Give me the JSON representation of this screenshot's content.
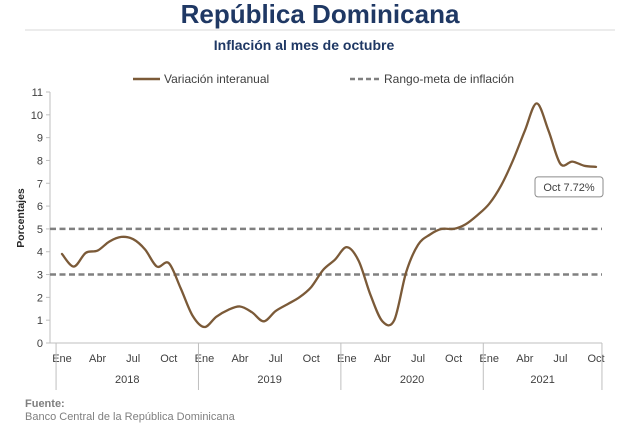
{
  "header": {
    "title": "República Dominicana"
  },
  "chart_data": {
    "type": "line",
    "title": "Inflación al mes de octubre",
    "xlabel": "",
    "ylabel": "Porcentajes",
    "ylim": [
      0,
      11
    ],
    "yticks": [
      0,
      1,
      2,
      3,
      4,
      5,
      6,
      7,
      8,
      9,
      10,
      11
    ],
    "x": [
      "2018-01",
      "2018-02",
      "2018-03",
      "2018-04",
      "2018-05",
      "2018-06",
      "2018-07",
      "2018-08",
      "2018-09",
      "2018-10",
      "2018-11",
      "2018-12",
      "2019-01",
      "2019-02",
      "2019-03",
      "2019-04",
      "2019-05",
      "2019-06",
      "2019-07",
      "2019-08",
      "2019-09",
      "2019-10",
      "2019-11",
      "2019-12",
      "2020-01",
      "2020-02",
      "2020-03",
      "2020-04",
      "2020-05",
      "2020-06",
      "2020-07",
      "2020-08",
      "2020-09",
      "2020-10",
      "2020-11",
      "2020-12",
      "2021-01",
      "2021-02",
      "2021-03",
      "2021-04",
      "2021-05",
      "2021-06",
      "2021-07",
      "2021-08",
      "2021-09",
      "2021-10"
    ],
    "xticks": [
      {
        "label": "Ene",
        "x": "2018-01"
      },
      {
        "label": "Abr",
        "x": "2018-04"
      },
      {
        "label": "Jul",
        "x": "2018-07"
      },
      {
        "label": "Oct",
        "x": "2018-10"
      },
      {
        "label": "Ene",
        "x": "2019-01"
      },
      {
        "label": "Abr",
        "x": "2019-04"
      },
      {
        "label": "Jul",
        "x": "2019-07"
      },
      {
        "label": "Oct",
        "x": "2019-10"
      },
      {
        "label": "Ene",
        "x": "2020-01"
      },
      {
        "label": "Abr",
        "x": "2020-04"
      },
      {
        "label": "Jul",
        "x": "2020-07"
      },
      {
        "label": "Oct",
        "x": "2020-10"
      },
      {
        "label": "Ene",
        "x": "2021-01"
      },
      {
        "label": "Abr",
        "x": "2021-04"
      },
      {
        "label": "Jul",
        "x": "2021-07"
      },
      {
        "label": "Oct",
        "x": "2021-10"
      }
    ],
    "year_groups": [
      {
        "label": "2018",
        "from": "2018-01",
        "to": "2018-12"
      },
      {
        "label": "2019",
        "from": "2019-01",
        "to": "2019-12"
      },
      {
        "label": "2020",
        "from": "2020-01",
        "to": "2020-12"
      },
      {
        "label": "2021",
        "from": "2021-01",
        "to": "2021-10"
      }
    ],
    "series": [
      {
        "name": "Variación interanual",
        "color": "#7b5a38",
        "values": [
          3.9,
          3.35,
          3.95,
          4.05,
          4.45,
          4.65,
          4.55,
          4.1,
          3.35,
          3.5,
          2.4,
          1.2,
          0.7,
          1.15,
          1.45,
          1.6,
          1.35,
          0.95,
          1.4,
          1.7,
          2.0,
          2.45,
          3.2,
          3.65,
          4.2,
          3.6,
          2.1,
          0.95,
          1.0,
          3.1,
          4.3,
          4.75,
          5.0,
          5.0,
          5.2,
          5.6,
          6.1,
          6.9,
          8.0,
          9.3,
          10.5,
          9.3,
          7.85,
          7.95,
          7.77,
          7.72
        ]
      }
    ],
    "reference_lines": [
      {
        "name": "Rango-meta de inflación",
        "values": [
          5,
          3
        ],
        "style": "dashed",
        "color": "#808080"
      }
    ],
    "annotations": [
      {
        "text": "Oct 7.72%",
        "x": "2021-10",
        "y": 7.72
      }
    ],
    "grid": false,
    "legend": "top"
  },
  "footer": {
    "source_label": "Fuente:",
    "source": "Banco Central de la República Dominicana"
  },
  "colors": {
    "title": "#1f3864",
    "axis": "#bfbfbf",
    "text": "#404040",
    "footer": "#7f7f7f"
  }
}
